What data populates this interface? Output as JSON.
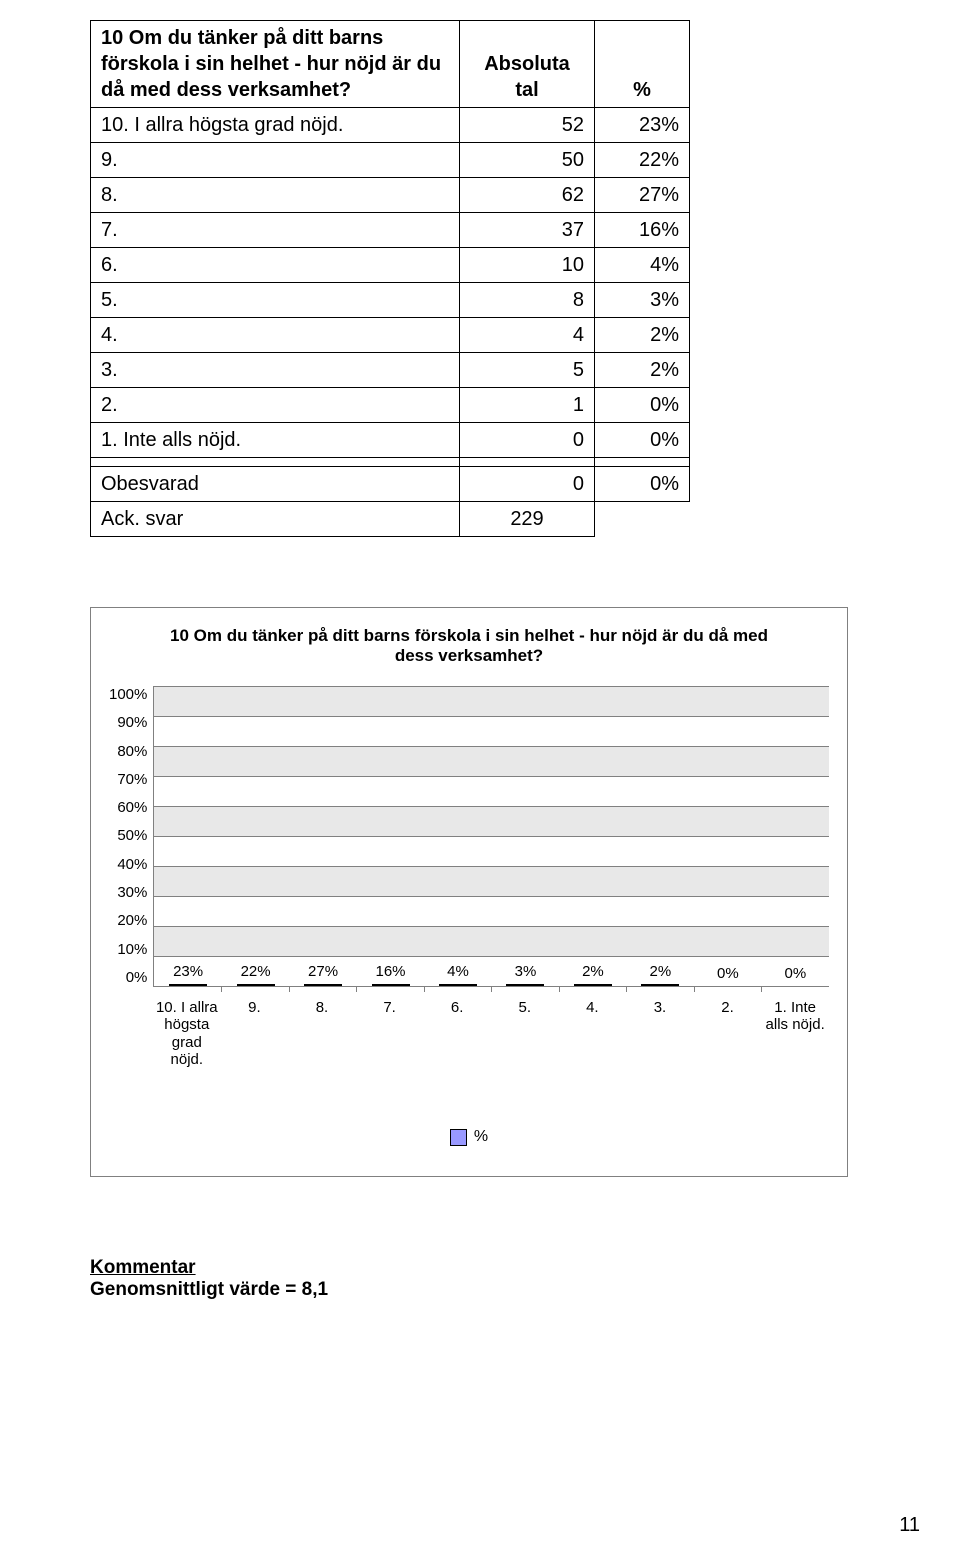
{
  "table": {
    "question": "10 Om du tänker på ditt barns förskola i sin helhet - hur nöjd är du då med dess verksamhet?",
    "col_abs": "Absoluta tal",
    "col_pct": "%",
    "rows": [
      {
        "label": "10. I allra högsta grad nöjd.",
        "abs": "52",
        "pct": "23%"
      },
      {
        "label": "9.",
        "abs": "50",
        "pct": "22%"
      },
      {
        "label": "8.",
        "abs": "62",
        "pct": "27%"
      },
      {
        "label": "7.",
        "abs": "37",
        "pct": "16%"
      },
      {
        "label": "6.",
        "abs": "10",
        "pct": "4%"
      },
      {
        "label": "5.",
        "abs": "8",
        "pct": "3%"
      },
      {
        "label": "4.",
        "abs": "4",
        "pct": "2%"
      },
      {
        "label": "3.",
        "abs": "5",
        "pct": "2%"
      },
      {
        "label": "2.",
        "abs": "1",
        "pct": "0%"
      },
      {
        "label": "1. Inte alls nöjd.",
        "abs": "0",
        "pct": "0%"
      }
    ],
    "obesvarad_label": "Obesvarad",
    "obesvarad_abs": "0",
    "obesvarad_pct": "0%",
    "ack_label": "Ack. svar",
    "ack_abs": "229"
  },
  "chart": {
    "title": "10 Om du tänker på ditt barns förskola i sin helhet - hur nöjd är du då med dess verksamhet?",
    "y_ticks": [
      "100%",
      "90%",
      "80%",
      "70%",
      "60%",
      "50%",
      "40%",
      "30%",
      "20%",
      "10%",
      "0%"
    ],
    "y_max": 100,
    "band_color_light": "#ffffff",
    "band_color_dark": "#e8e8e8",
    "grid_color": "#808080",
    "bar_fill": "#9999ff",
    "bar_border": "#000000",
    "bars": [
      {
        "xlabel": "10. I allra\nhögsta\ngrad\nnöjd.",
        "value": 23,
        "label": "23%"
      },
      {
        "xlabel": "9.",
        "value": 22,
        "label": "22%"
      },
      {
        "xlabel": "8.",
        "value": 27,
        "label": "27%"
      },
      {
        "xlabel": "7.",
        "value": 16,
        "label": "16%"
      },
      {
        "xlabel": "6.",
        "value": 4,
        "label": "4%"
      },
      {
        "xlabel": "5.",
        "value": 3,
        "label": "3%"
      },
      {
        "xlabel": "4.",
        "value": 2,
        "label": "2%"
      },
      {
        "xlabel": "3.",
        "value": 2,
        "label": "2%"
      },
      {
        "xlabel": "2.",
        "value": 0,
        "label": "0%"
      },
      {
        "xlabel": "1. Inte\nalls nöjd.",
        "value": 0,
        "label": "0%"
      }
    ],
    "legend_label": "%",
    "legend_color": "#9999ff"
  },
  "comment": {
    "heading": "Kommentar",
    "text": "Genomsnittligt värde = 8,1"
  },
  "page_number": "11"
}
